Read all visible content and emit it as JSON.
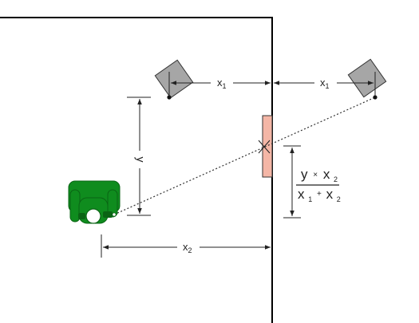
{
  "labels": {
    "x1_left": {
      "base": "x",
      "sub": "1"
    },
    "x1_right": {
      "base": "x",
      "sub": "1"
    },
    "y": "y",
    "x2": {
      "base": "x",
      "sub": "2"
    }
  },
  "formula": {
    "numerator": {
      "a": "y",
      "op": "×",
      "b": "x",
      "b_sub": "2"
    },
    "denominator": {
      "a": "x",
      "a_sub": "1",
      "op": "+",
      "b": "x",
      "b_sub": "2"
    }
  },
  "icons": {
    "camera_left": "camera-icon",
    "camera_right": "camera-icon",
    "person": "person-top-view-icon",
    "mirror": "mirror-icon"
  },
  "colors": {
    "wall": "#000000",
    "camera_fill": "#a6a6a6",
    "mirror_fill": "#f4b6a6",
    "person_green": "#0f8c1e",
    "person_dark": "#0a6414",
    "line": "#222222"
  }
}
